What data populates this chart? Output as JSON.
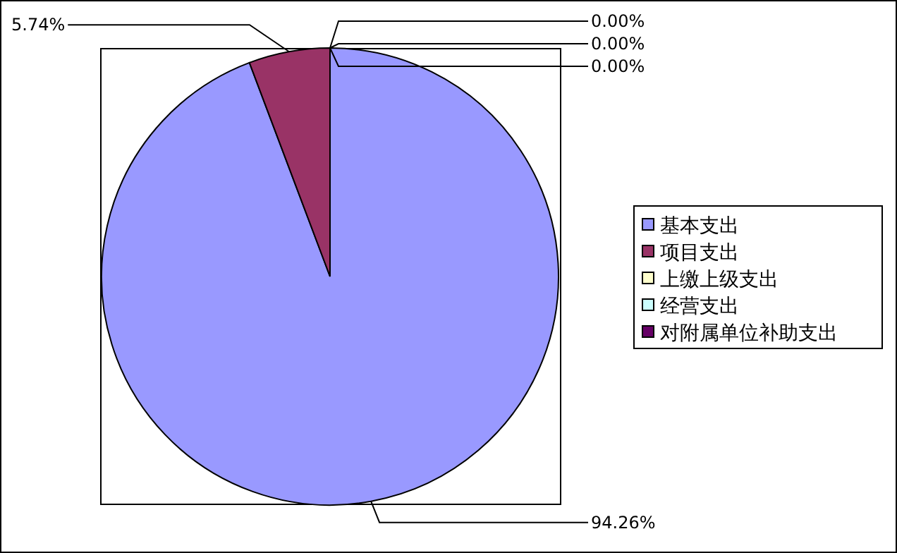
{
  "chart_data": {
    "type": "pie",
    "categories": [
      "基本支出",
      "项目支出",
      "上缴上级支出",
      "经营支出",
      "对附属单位补助支出"
    ],
    "values": [
      94.26,
      5.74,
      0,
      0,
      0
    ],
    "colors": [
      "#9999ff",
      "#993366",
      "#ffffcc",
      "#ccffff",
      "#660066"
    ],
    "value_labels": [
      "94.26%",
      "5.74%",
      "0.00%",
      "0.00%",
      "0.00%"
    ],
    "legend": "right"
  }
}
